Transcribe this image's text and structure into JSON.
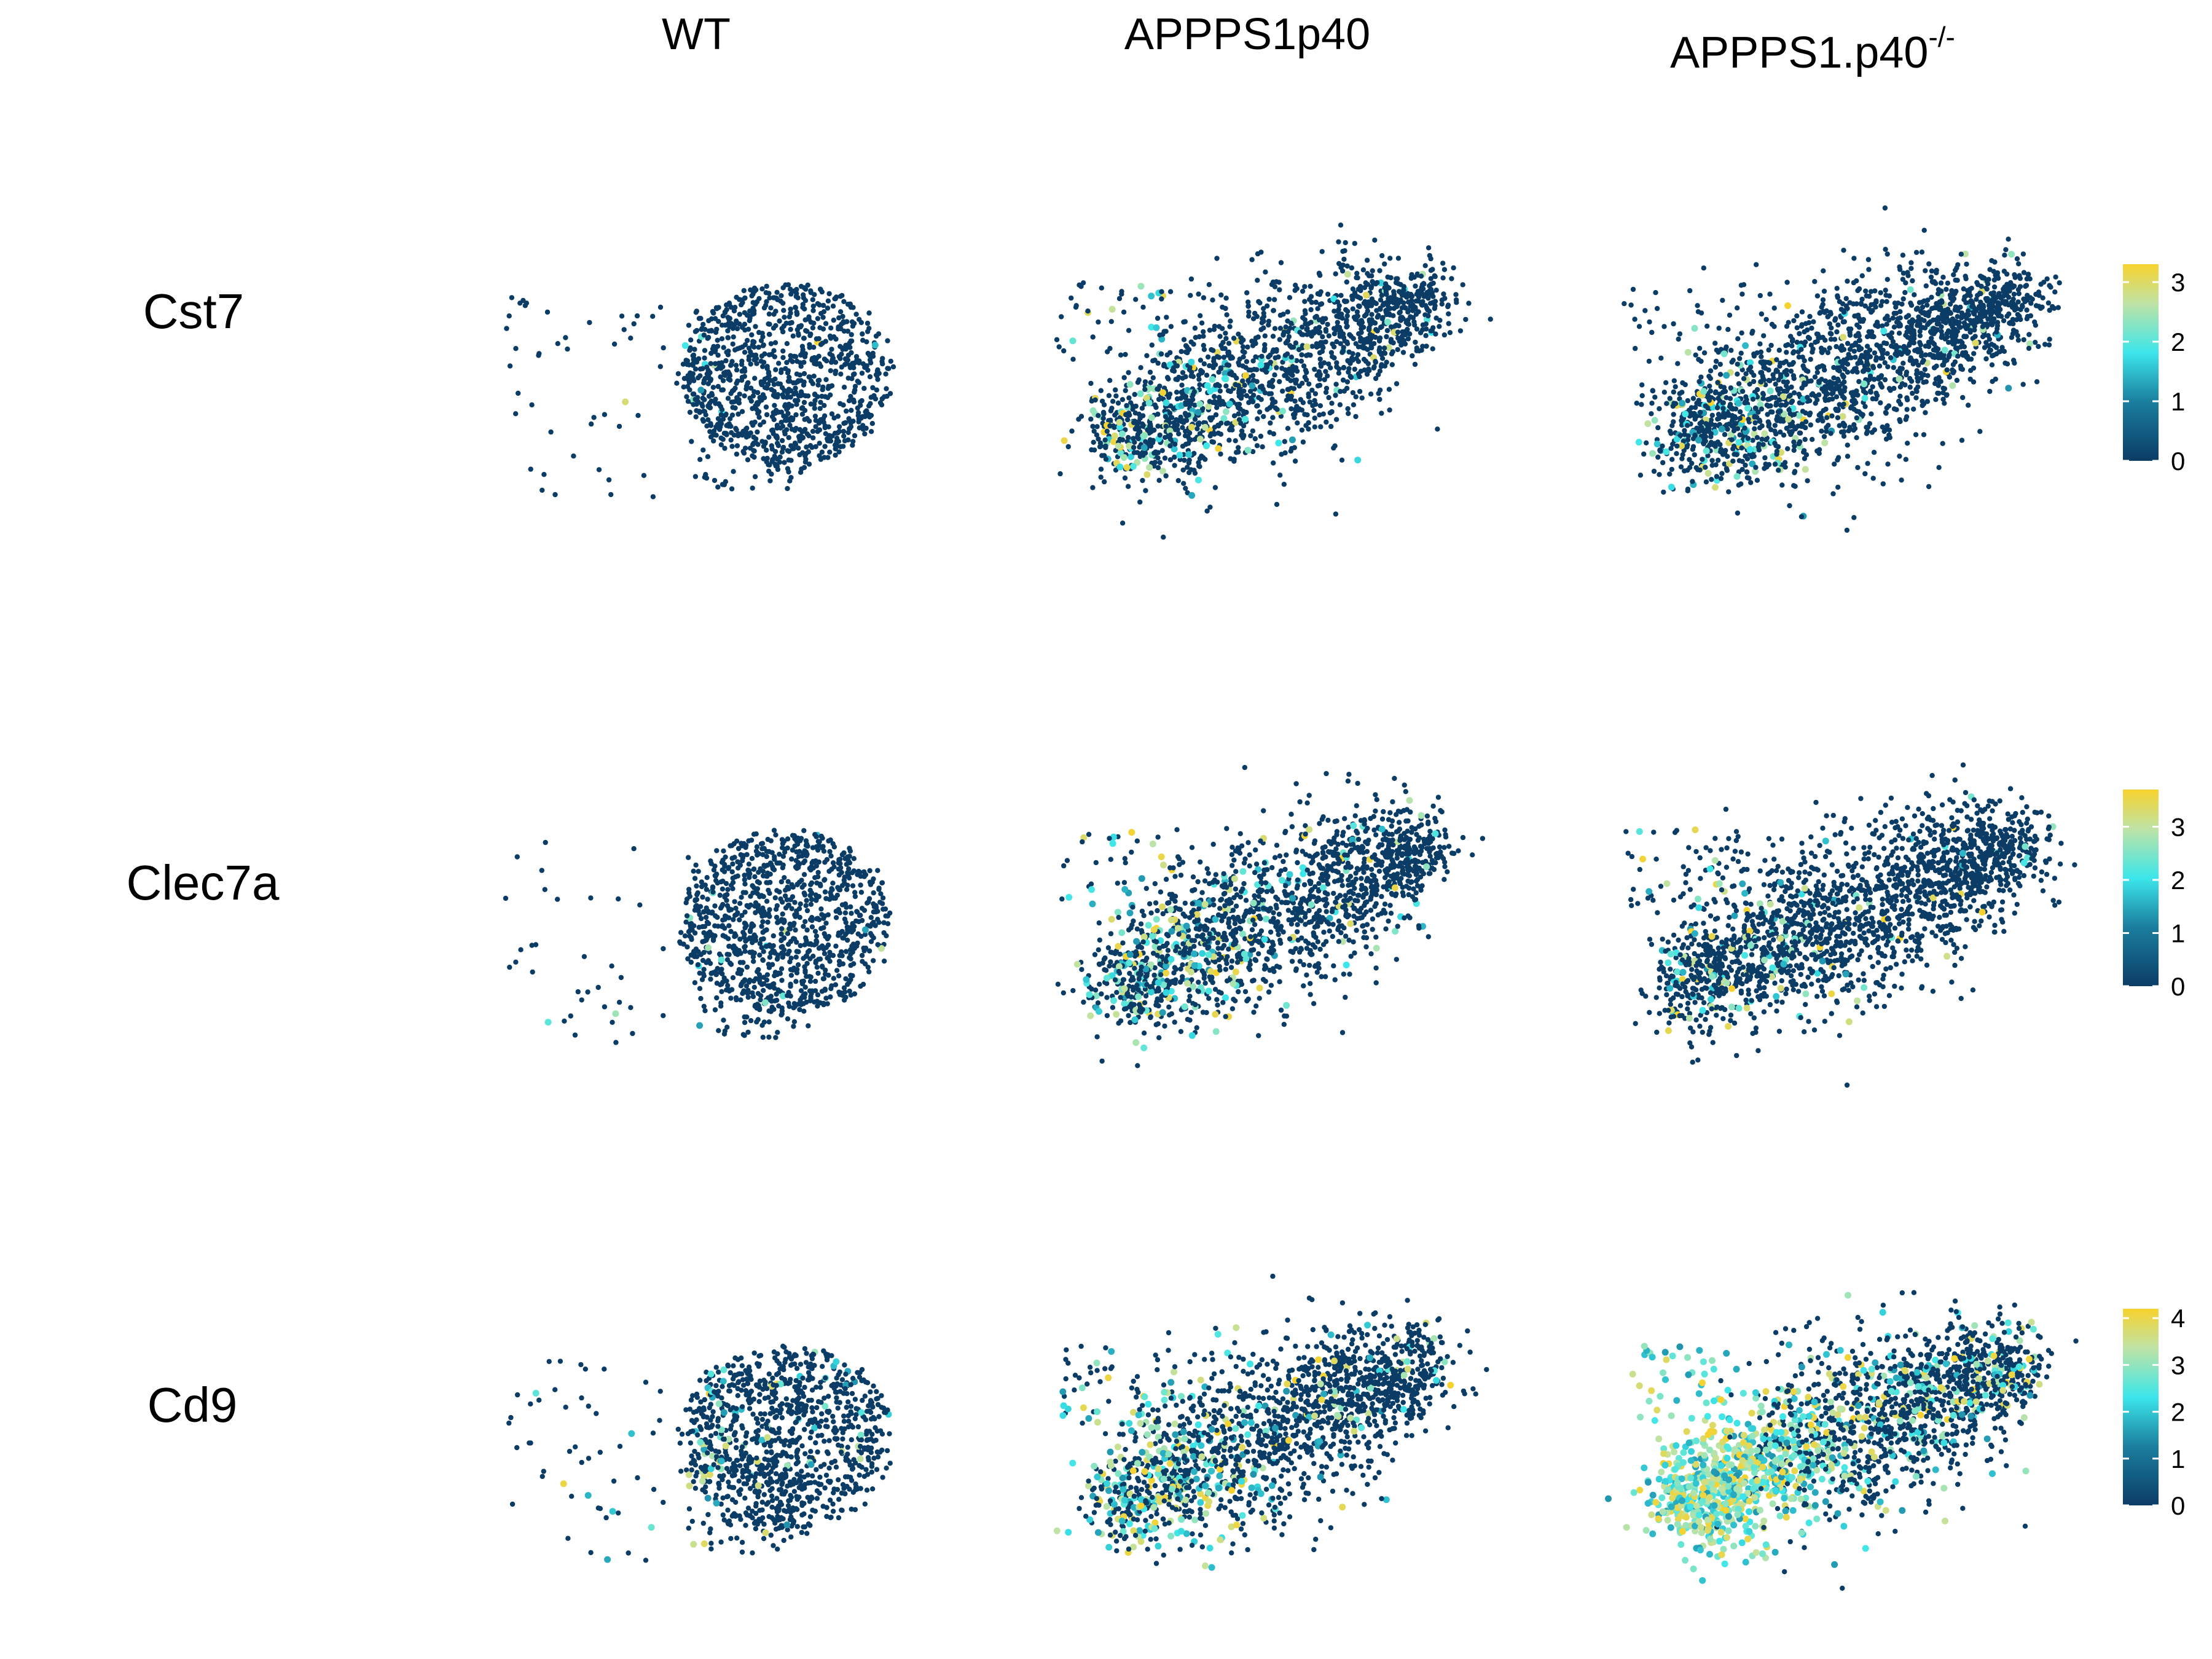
{
  "figure": {
    "columns": [
      {
        "label": "WT",
        "superscript": ""
      },
      {
        "label": "APPPS1p40",
        "superscript": ""
      },
      {
        "label": "APPPS1.p40",
        "superscript": "-/-"
      }
    ],
    "rows": [
      {
        "gene": "Cst7"
      },
      {
        "gene": "Clec7a"
      },
      {
        "gene": "Cd9"
      }
    ]
  },
  "colors": {
    "low": "#0b3c66",
    "mid": "#3ce6ea",
    "high": "#f7d22d",
    "colorbar_stops": [
      "#0b3c66",
      "#1a7e9e",
      "#3ce6ea",
      "#bfe3a6",
      "#f7d22d"
    ]
  },
  "chart_data": [
    {
      "type": "scatter",
      "row": "Cst7",
      "column": "WT",
      "cell_count": 1100,
      "high_expression_fraction": 0.01,
      "color_scale_max": 3.3
    },
    {
      "type": "scatter",
      "row": "Cst7",
      "column": "APPPS1p40",
      "cell_count": 1700,
      "high_expression_fraction": 0.06,
      "color_scale_max": 3.3
    },
    {
      "type": "scatter",
      "row": "Cst7",
      "column": "APPPS1.p40-/-",
      "cell_count": 2000,
      "high_expression_fraction": 0.07,
      "color_scale_max": 3.3
    },
    {
      "type": "scatter",
      "row": "Clec7a",
      "column": "WT",
      "cell_count": 1100,
      "high_expression_fraction": 0.01,
      "color_scale_max": 3.7
    },
    {
      "type": "scatter",
      "row": "Clec7a",
      "column": "APPPS1p40",
      "cell_count": 1700,
      "high_expression_fraction": 0.1,
      "color_scale_max": 3.7
    },
    {
      "type": "scatter",
      "row": "Clec7a",
      "column": "APPPS1.p40-/-",
      "cell_count": 2000,
      "high_expression_fraction": 0.05,
      "color_scale_max": 3.7
    },
    {
      "type": "scatter",
      "row": "Cd9",
      "column": "WT",
      "cell_count": 1100,
      "high_expression_fraction": 0.08,
      "color_scale_max": 4.2
    },
    {
      "type": "scatter",
      "row": "Cd9",
      "column": "APPPS1p40",
      "cell_count": 1700,
      "high_expression_fraction": 0.15,
      "color_scale_max": 4.2
    },
    {
      "type": "scatter",
      "row": "Cd9",
      "column": "APPPS1.p40-/-",
      "cell_count": 2000,
      "high_expression_fraction": 0.4,
      "color_scale_max": 4.2
    }
  ],
  "legends": [
    {
      "row": "Cst7",
      "ticks": [
        "0",
        "1",
        "2",
        "3"
      ],
      "max": 3.3
    },
    {
      "row": "Clec7a",
      "ticks": [
        "0",
        "1",
        "2",
        "3"
      ],
      "max": 3.7
    },
    {
      "row": "Cd9",
      "ticks": [
        "0",
        "1",
        "2",
        "3",
        "4"
      ],
      "max": 4.2
    }
  ]
}
